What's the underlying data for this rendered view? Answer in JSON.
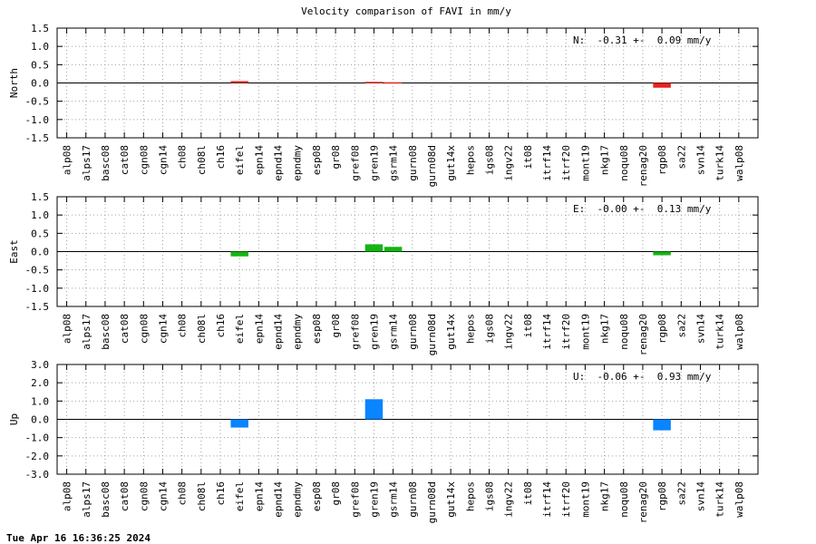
{
  "title": "Velocity comparison of FAVI in mm/y",
  "timestamp": "Tue Apr 16 16:36:25 2024",
  "colors": {
    "north": "#e8231d",
    "east": "#14b414",
    "up": "#0a84ff"
  },
  "chart_data": [
    {
      "type": "bar",
      "ylabel": "North",
      "ylim": [
        -1.5,
        1.5
      ],
      "yticks": [
        "1.5",
        "1.0",
        "0.5",
        "0.0",
        "-0.5",
        "-1.0",
        "-1.5"
      ],
      "grid": true,
      "annotation": "N:  -0.31 +-  0.09 mm/y",
      "categories": [
        "alp08",
        "alps17",
        "basc08",
        "cat08",
        "cgn08",
        "cgn14",
        "ch08",
        "ch08l",
        "ch16",
        "eifel",
        "epn14",
        "epnd14",
        "epndmy",
        "esp08",
        "gr08",
        "gref08",
        "gren19",
        "gsrm14",
        "gurn08",
        "gurn08d",
        "gut14x",
        "hepos",
        "igs08",
        "ingv22",
        "it08",
        "itrf14",
        "itrf20",
        "mont19",
        "nkg17",
        "noqu08",
        "renag20",
        "rgp08",
        "sa22",
        "svn14",
        "turk14",
        "walp08"
      ],
      "values": [
        null,
        null,
        null,
        null,
        null,
        null,
        null,
        null,
        null,
        0.05,
        null,
        null,
        null,
        null,
        null,
        null,
        0.03,
        0.02,
        null,
        null,
        null,
        null,
        null,
        null,
        null,
        null,
        null,
        null,
        null,
        null,
        null,
        -0.13,
        null,
        null,
        null,
        null
      ]
    },
    {
      "type": "bar",
      "ylabel": "East",
      "ylim": [
        -1.5,
        1.5
      ],
      "yticks": [
        "1.5",
        "1.0",
        "0.5",
        "0.0",
        "-0.5",
        "-1.0",
        "-1.5"
      ],
      "grid": true,
      "annotation": "E:  -0.00 +-  0.13 mm/y",
      "categories": [
        "alp08",
        "alps17",
        "basc08",
        "cat08",
        "cgn08",
        "cgn14",
        "ch08",
        "ch08l",
        "ch16",
        "eifel",
        "epn14",
        "epnd14",
        "epndmy",
        "esp08",
        "gr08",
        "gref08",
        "gren19",
        "gsrm14",
        "gurn08",
        "gurn08d",
        "gut14x",
        "hepos",
        "igs08",
        "ingv22",
        "it08",
        "itrf14",
        "itrf20",
        "mont19",
        "nkg17",
        "noqu08",
        "renag20",
        "rgp08",
        "sa22",
        "svn14",
        "turk14",
        "walp08"
      ],
      "values": [
        null,
        null,
        null,
        null,
        null,
        null,
        null,
        null,
        null,
        -0.13,
        null,
        null,
        null,
        null,
        null,
        null,
        0.2,
        0.13,
        null,
        null,
        null,
        null,
        null,
        null,
        null,
        null,
        null,
        null,
        null,
        null,
        null,
        -0.1,
        null,
        null,
        null,
        null
      ]
    },
    {
      "type": "bar",
      "ylabel": "Up",
      "ylim": [
        -3.0,
        3.0
      ],
      "yticks": [
        "3.0",
        "2.0",
        "1.0",
        "0.0",
        "-1.0",
        "-2.0",
        "-3.0"
      ],
      "grid": true,
      "annotation": "U:  -0.06 +-  0.93 mm/y",
      "categories": [
        "alp08",
        "alps17",
        "basc08",
        "cat08",
        "cgn08",
        "cgn14",
        "ch08",
        "ch08l",
        "ch16",
        "eifel",
        "epn14",
        "epnd14",
        "epndmy",
        "esp08",
        "gr08",
        "gref08",
        "gren19",
        "gsrm14",
        "gurn08",
        "gurn08d",
        "gut14x",
        "hepos",
        "igs08",
        "ingv22",
        "it08",
        "itrf14",
        "itrf20",
        "mont19",
        "nkg17",
        "noqu08",
        "renag20",
        "rgp08",
        "sa22",
        "svn14",
        "turk14",
        "walp08"
      ],
      "values": [
        null,
        null,
        null,
        null,
        null,
        null,
        null,
        null,
        null,
        -0.45,
        null,
        null,
        null,
        null,
        null,
        null,
        1.1,
        null,
        null,
        null,
        null,
        null,
        null,
        null,
        null,
        null,
        null,
        null,
        null,
        null,
        null,
        -0.6,
        null,
        null,
        null,
        null
      ]
    }
  ]
}
